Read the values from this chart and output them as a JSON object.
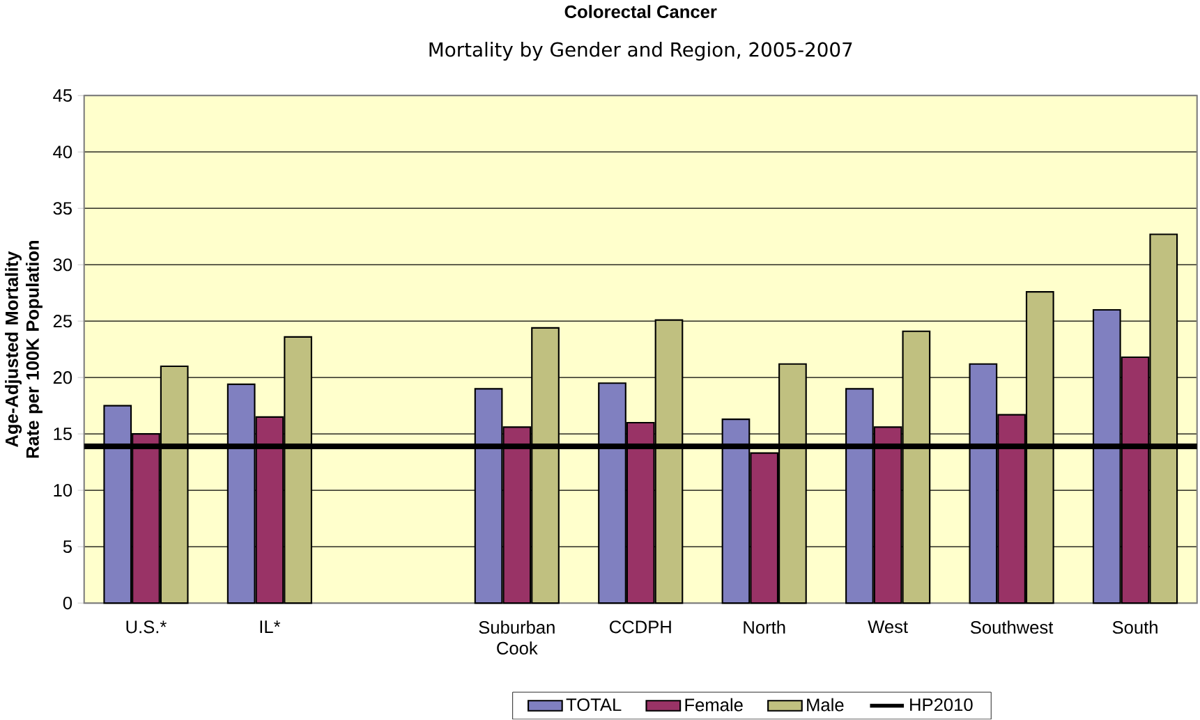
{
  "chart_data": {
    "type": "bar",
    "title": "Colorectal Cancer",
    "subtitle": "Mortality by Gender and Region, 2005-2007",
    "ylabel": "Age-Adjusted Mortality Rate per 100K Population",
    "categories": [
      "U.S.*",
      "IL*",
      null,
      "Suburban Cook",
      "CCDPH",
      "North",
      "West",
      "Southwest",
      "South"
    ],
    "series": [
      {
        "name": "TOTAL",
        "color": "#8080c0",
        "values": [
          17.5,
          19.4,
          null,
          19.0,
          19.5,
          16.3,
          19.0,
          21.2,
          26.0
        ]
      },
      {
        "name": "Female",
        "color": "#993366",
        "values": [
          15.0,
          16.5,
          null,
          15.6,
          16.0,
          13.3,
          15.6,
          16.7,
          21.8
        ]
      },
      {
        "name": "Male",
        "color": "#c0c080",
        "values": [
          21.0,
          23.6,
          null,
          24.4,
          25.1,
          21.2,
          24.1,
          27.6,
          32.7
        ]
      }
    ],
    "ref_lines": [
      {
        "axis": "y",
        "value": 13.9,
        "label": "HP2010",
        "color": "#000000"
      }
    ],
    "ylim": [
      0,
      45
    ],
    "yticks": [
      0,
      5,
      10,
      15,
      20,
      25,
      30,
      35,
      40,
      45
    ],
    "grid": "y",
    "legend": "bottom"
  }
}
